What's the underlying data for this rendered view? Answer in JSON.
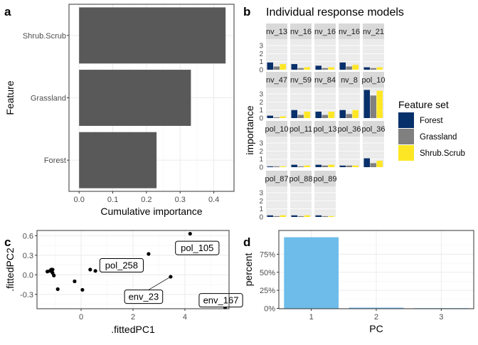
{
  "chart_data": [
    {
      "panel": "a",
      "type": "bar",
      "orientation": "horizontal",
      "categories": [
        "Shrub.Scrub",
        "Grassland",
        "Forest"
      ],
      "values": [
        0.435,
        0.332,
        0.23
      ],
      "xlabel": "Cumulative importance",
      "ylabel": "Feature",
      "xlim": [
        -0.03,
        0.46
      ],
      "xticks": [
        "0.0",
        "0.1",
        "0.2",
        "0.3",
        "0.4"
      ],
      "bar_color": "#595959"
    },
    {
      "panel": "b",
      "type": "bar",
      "title": "Individual response models",
      "ylabel": "importance",
      "ylim": [
        0,
        3.8
      ],
      "yticks": [
        "0",
        "1",
        "2",
        "3"
      ],
      "legend": {
        "title": "Feature set",
        "placement": "right",
        "entries": [
          {
            "name": "Forest",
            "color": "#08306b"
          },
          {
            "name": "Grassland",
            "color": "#808080"
          },
          {
            "name": "Shrub.Scrub",
            "color": "#fde725"
          }
        ]
      },
      "facets": [
        {
          "label": "nv_13",
          "values": [
            0.9,
            0.4,
            0.7
          ]
        },
        {
          "label": "nv_16",
          "values": [
            0.7,
            0.2,
            0.3
          ]
        },
        {
          "label": "nv_16",
          "values": [
            0.5,
            0.2,
            0.3
          ]
        },
        {
          "label": "nv_16",
          "values": [
            0.9,
            0.4,
            0.6
          ]
        },
        {
          "label": "nv_21",
          "values": [
            0.3,
            0.2,
            0.3
          ]
        },
        {
          "label": "nv_47",
          "values": [
            0.3,
            0.1,
            0.2
          ]
        },
        {
          "label": "nv_59",
          "values": [
            1.0,
            0.4,
            0.8
          ]
        },
        {
          "label": "nv_84",
          "values": [
            0.8,
            0.4,
            0.8
          ]
        },
        {
          "label": "nv_8",
          "values": [
            1.0,
            0.5,
            1.0
          ]
        },
        {
          "label": "pol_10",
          "values": [
            3.5,
            2.8,
            3.4
          ]
        },
        {
          "label": "pol_10",
          "values": [
            0.1,
            0.1,
            0.1
          ]
        },
        {
          "label": "pol_11",
          "values": [
            0.3,
            0.1,
            0.2
          ]
        },
        {
          "label": "pol_13",
          "values": [
            0.3,
            0.2,
            0.3
          ]
        },
        {
          "label": "pol_36",
          "values": [
            0.2,
            0.2,
            0.2
          ]
        },
        {
          "label": "pol_36",
          "values": [
            1.1,
            0.5,
            0.8
          ]
        },
        {
          "label": "pol_87",
          "values": [
            0.2,
            0.1,
            0.2
          ]
        },
        {
          "label": "pol_88",
          "values": [
            0.2,
            0.1,
            0.2
          ]
        },
        {
          "label": "pol_89",
          "values": [
            0.2,
            0.1,
            0.1
          ]
        }
      ]
    },
    {
      "panel": "c",
      "type": "scatter",
      "xlabel": ".fittedPC1",
      "ylabel": ".fittedPC2",
      "xlim": [
        -1.7,
        5.7
      ],
      "ylim": [
        -0.52,
        0.68
      ],
      "xticks": [
        0,
        2,
        4
      ],
      "yticks": [
        -0.3,
        0.0,
        0.3,
        0.6
      ],
      "points": [
        {
          "x": -1.3,
          "y": 0.05
        },
        {
          "x": -1.2,
          "y": 0.06
        },
        {
          "x": -1.15,
          "y": 0.08
        },
        {
          "x": -1.1,
          "y": 0.03
        },
        {
          "x": -1.1,
          "y": 0.08
        },
        {
          "x": -1.05,
          "y": -0.01
        },
        {
          "x": -0.9,
          "y": -0.22
        },
        {
          "x": -0.25,
          "y": -0.1
        },
        {
          "x": 0.05,
          "y": -0.23
        },
        {
          "x": 0.35,
          "y": 0.08
        },
        {
          "x": 0.55,
          "y": 0.06
        },
        {
          "x": 2.6,
          "y": 0.32
        },
        {
          "x": 3.45,
          "y": -0.03
        },
        {
          "x": 4.2,
          "y": 0.63
        },
        {
          "x": 5.55,
          "y": -0.5
        }
      ],
      "labels": [
        {
          "text": "pol_258",
          "x": 2.6,
          "y": 0.32
        },
        {
          "text": "pol_105",
          "x": 4.2,
          "y": 0.63
        },
        {
          "text": "env_23",
          "x": 3.45,
          "y": -0.03
        },
        {
          "text": "env_167",
          "x": 5.55,
          "y": -0.5
        }
      ]
    },
    {
      "panel": "d",
      "type": "bar",
      "categories": [
        "1",
        "2",
        "3"
      ],
      "values": [
        0.985,
        0.01,
        0.003
      ],
      "xlabel": "PC",
      "ylabel": "percent",
      "ylim": [
        0,
        1.0
      ],
      "yticks": [
        "0%",
        "25%",
        "50%",
        "75%"
      ],
      "bar_color": "#6dbcea"
    }
  ]
}
